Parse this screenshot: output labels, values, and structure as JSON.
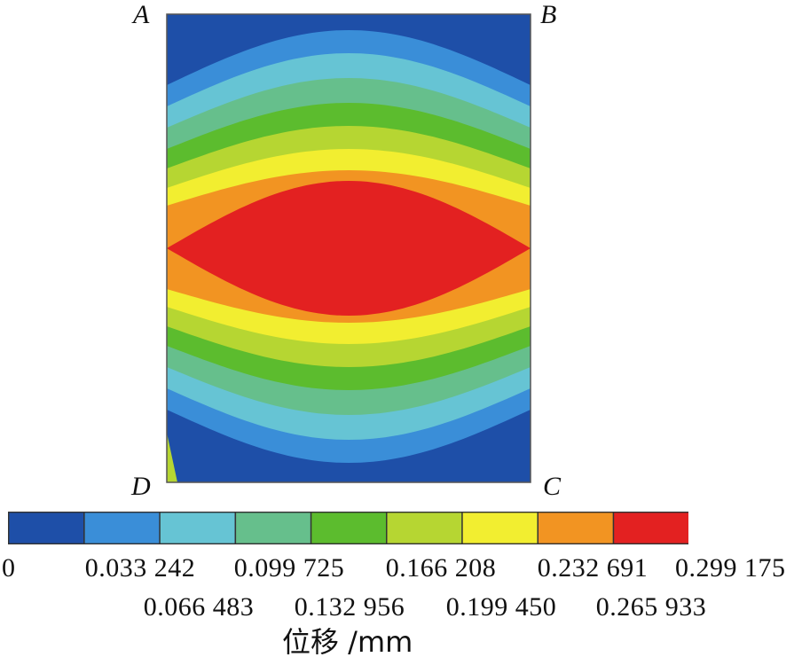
{
  "corners": {
    "a": "A",
    "b": "B",
    "c": "C",
    "d": "D"
  },
  "colors": [
    "#1e4fa8",
    "#3a8ed8",
    "#66c4d4",
    "#66bf8c",
    "#5cbc2e",
    "#b6d632",
    "#f2ee30",
    "#f29422",
    "#e32121"
  ],
  "legend": {
    "title": "位移 /mm",
    "ticks_row1": [
      "0",
      "0.033 242",
      "0.099 725",
      "0.166 208",
      "0.232 691",
      "0.299 175"
    ],
    "ticks_row2": [
      "0.066 483",
      "0.132 956",
      "0.199 450",
      "0.265 933"
    ]
  },
  "chart_data": {
    "type": "heatmap",
    "quantity": "位移",
    "unit": "mm",
    "levels": [
      0,
      0.033242,
      0.066483,
      0.099725,
      0.132956,
      0.166208,
      0.19945,
      0.232691,
      0.265933,
      0.299175
    ],
    "range": [
      0,
      0.299175
    ],
    "max_location": "center of left-right edge midline",
    "min_location": "corners A, B, C, D"
  }
}
